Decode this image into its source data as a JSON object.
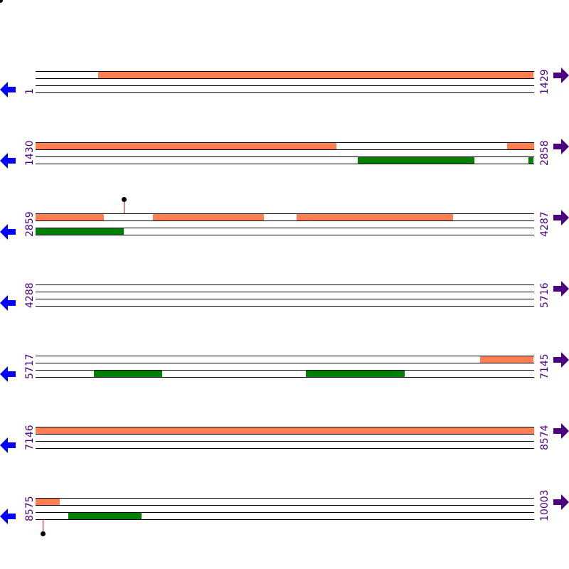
{
  "colors": {
    "top_feature": "#ff7f50",
    "bottom_feature": "#008000",
    "label": "#4b0082",
    "left_arrow": "#0000ff",
    "right_arrow": "#4b0082",
    "marker_stem": "#ff0000"
  },
  "rows_per_bp": 1429,
  "rows": [
    {
      "start": "1",
      "end": "1429",
      "s": 1,
      "top": [
        [
          180,
          1429
        ]
      ],
      "bottom": [],
      "markers": []
    },
    {
      "start": "1430",
      "end": "2858",
      "s": 1430,
      "top": [
        [
          1430,
          2292
        ],
        [
          2782,
          2858
        ]
      ],
      "bottom": [
        [
          2354,
          2688
        ],
        [
          2843,
          2858
        ]
      ],
      "markers": []
    },
    {
      "start": "2859",
      "end": "4287",
      "s": 2859,
      "top": [
        [
          2859,
          3055
        ],
        [
          3195,
          3514
        ],
        [
          3607,
          4056
        ]
      ],
      "bottom": [
        [
          2859,
          3112
        ]
      ],
      "markers": [
        {
          "pos": 3112,
          "dir": "up"
        }
      ]
    },
    {
      "start": "4288",
      "end": "5716",
      "s": 4288,
      "top": [],
      "bottom": [],
      "markers": []
    },
    {
      "start": "5717",
      "end": "7145",
      "s": 5717,
      "top": [
        [
          6991,
          7145
        ]
      ],
      "bottom": [
        [
          5884,
          6080
        ],
        [
          6492,
          6775
        ]
      ],
      "markers": []
    },
    {
      "start": "7146",
      "end": "8574",
      "s": 7146,
      "top": [
        [
          7146,
          8574
        ]
      ],
      "bottom": [],
      "markers": []
    },
    {
      "start": "8575",
      "end": "10003",
      "s": 8575,
      "top": [
        [
          8575,
          8644
        ]
      ],
      "bottom": [
        [
          8669,
          8879
        ]
      ],
      "markers": [
        {
          "pos": 8595,
          "dir": "down"
        }
      ]
    }
  ]
}
